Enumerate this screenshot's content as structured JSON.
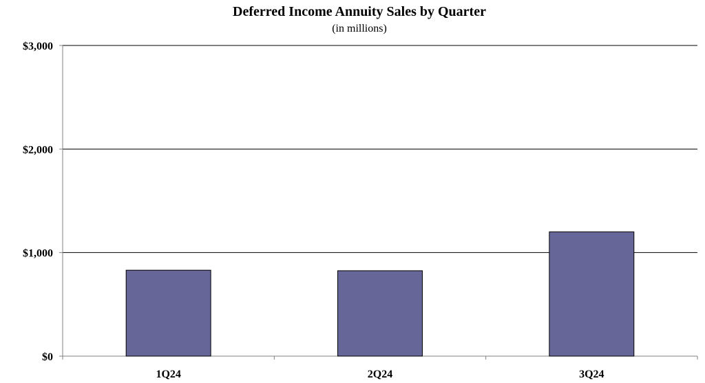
{
  "chart_data": {
    "type": "bar",
    "title": "Deferred Income Annuity Sales by Quarter",
    "subtitle": "(in millions)",
    "xlabel": "",
    "ylabel": "",
    "categories": [
      "1Q24",
      "2Q24",
      "3Q24"
    ],
    "values": [
      830,
      825,
      1200
    ],
    "ylim": [
      0,
      3000
    ],
    "yticks": [
      0,
      1000,
      2000,
      3000
    ],
    "ytick_labels": [
      "$0",
      "$1,000",
      "$2,000",
      "$3,000"
    ],
    "grid": true,
    "legend": "none",
    "colors": {
      "bar_fill": "#666699",
      "bar_stroke": "#000000",
      "gridline": "#000000",
      "axis": "#808080"
    }
  }
}
